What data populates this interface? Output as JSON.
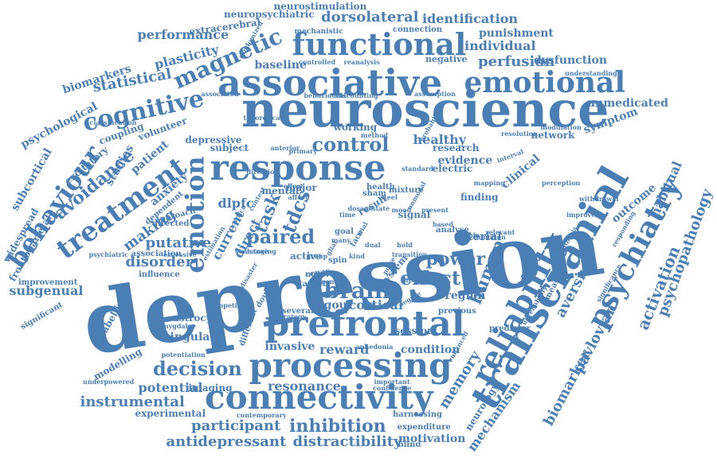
{
  "color": "#4a7fb5",
  "words": [
    {
      "text": "depression",
      "w": 100
    },
    {
      "text": "neuroscience",
      "w": 62
    },
    {
      "text": "transcranial",
      "w": 48
    },
    {
      "text": "associative",
      "w": 46
    },
    {
      "text": "prefrontal",
      "w": 44
    },
    {
      "text": "response",
      "w": 42
    },
    {
      "text": "processing",
      "w": 40
    },
    {
      "text": "connectivity",
      "w": 40
    },
    {
      "text": "functional",
      "w": 36
    },
    {
      "text": "emotional",
      "w": 36
    },
    {
      "text": "reliability",
      "w": 36
    },
    {
      "text": "psychiatry",
      "w": 34
    },
    {
      "text": "treatment",
      "w": 32
    },
    {
      "text": "behaviour",
      "w": 30
    },
    {
      "text": "emotion",
      "w": 30
    },
    {
      "text": "cognitive",
      "w": 28
    },
    {
      "text": "magnetic",
      "w": 26
    },
    {
      "text": "brain",
      "w": 26
    },
    {
      "text": "decision",
      "w": 24
    },
    {
      "text": "control",
      "w": 24
    },
    {
      "text": "paired",
      "w": 24
    },
    {
      "text": "effect",
      "w": 24
    },
    {
      "text": "human",
      "w": 22
    },
    {
      "text": "avoidance",
      "w": 22
    },
    {
      "text": "tdcs",
      "w": 22
    },
    {
      "text": "task",
      "w": 22
    },
    {
      "text": "power",
      "w": 22
    },
    {
      "text": "inhibition",
      "w": 22
    },
    {
      "text": "activation",
      "w": 20
    },
    {
      "text": "psychopathology",
      "w": 18
    },
    {
      "text": "antidepressant",
      "w": 18
    },
    {
      "text": "distractibility",
      "w": 18
    },
    {
      "text": "participant",
      "w": 18
    },
    {
      "text": "instrumental",
      "w": 18
    },
    {
      "text": "memory",
      "w": 18
    },
    {
      "text": "biomarker",
      "w": 18
    },
    {
      "text": "aversive",
      "w": 18
    },
    {
      "text": "pavlovian",
      "w": 18
    },
    {
      "text": "statistical",
      "w": 18
    },
    {
      "text": "perfusion",
      "w": 18
    },
    {
      "text": "dorsolateral",
      "w": 18
    },
    {
      "text": "making",
      "w": 18
    },
    {
      "text": "disorder",
      "w": 18
    },
    {
      "text": "putative",
      "w": 18
    },
    {
      "text": "mechanism",
      "w": 16
    },
    {
      "text": "habitual",
      "w": 16
    },
    {
      "text": "cortical",
      "w": 16
    },
    {
      "text": "reward",
      "w": 16
    },
    {
      "text": "resonance",
      "w": 16
    },
    {
      "text": "potential",
      "w": 16
    },
    {
      "text": "current",
      "w": 16
    },
    {
      "text": "direct",
      "w": 16
    },
    {
      "text": "dlpfc",
      "w": 16
    },
    {
      "text": "healthy",
      "w": 16
    },
    {
      "text": "subgenual",
      "w": 16
    },
    {
      "text": "plasticity",
      "w": 16
    },
    {
      "text": "performance",
      "w": 16
    },
    {
      "text": "identification",
      "w": 16
    },
    {
      "text": "individual",
      "w": 16
    },
    {
      "text": "anxiety",
      "w": 14
    },
    {
      "text": "patient",
      "w": 14
    },
    {
      "text": "studies",
      "w": 14
    },
    {
      "text": "psychological",
      "w": 14
    },
    {
      "text": "biomarkers",
      "w": 14
    },
    {
      "text": "subcortical",
      "w": 14
    },
    {
      "text": "region",
      "w": 14
    },
    {
      "text": "evidence",
      "w": 14
    },
    {
      "text": "clinical",
      "w": 14
    },
    {
      "text": "condition",
      "w": 14
    },
    {
      "text": "cingulate",
      "w": 14
    },
    {
      "text": "dysfunction",
      "w": 14
    },
    {
      "text": "unmedicated",
      "w": 14
    },
    {
      "text": "symptom",
      "w": 14
    },
    {
      "text": "outcome",
      "w": 14
    },
    {
      "text": "motivation",
      "w": 14
    },
    {
      "text": "punishment",
      "w": 14
    },
    {
      "text": "invasive",
      "w": 14
    },
    {
      "text": "vigour",
      "w": 14
    },
    {
      "text": "baseline",
      "w": 14
    },
    {
      "text": "arterial",
      "w": 14
    },
    {
      "text": "imaging",
      "w": 12
    },
    {
      "text": "network",
      "w": 12
    },
    {
      "text": "research",
      "w": 12
    },
    {
      "text": "electric",
      "w": 12
    },
    {
      "text": "astrocyte",
      "w": 12
    },
    {
      "text": "coupling",
      "w": 12
    },
    {
      "text": "volunteer",
      "w": 12
    },
    {
      "text": "neurostimulation",
      "w": 12
    },
    {
      "text": "neuropsychiatric",
      "w": 12
    },
    {
      "text": "extracerebral",
      "w": 12
    },
    {
      "text": "modelling",
      "w": 12
    },
    {
      "text": "experimental",
      "w": 12
    },
    {
      "text": "excitatory",
      "w": 12
    },
    {
      "text": "widespread",
      "w": 12
    },
    {
      "text": "frontoparietal",
      "w": 12
    },
    {
      "text": "working",
      "w": 12
    },
    {
      "text": "depressive",
      "w": 12
    },
    {
      "text": "subject",
      "w": 12
    },
    {
      "text": "finding",
      "w": 12
    },
    {
      "text": "labelling",
      "w": 12
    },
    {
      "text": "neurology",
      "w": 12
    },
    {
      "text": "session",
      "w": 12
    },
    {
      "text": "signal",
      "w": 12
    },
    {
      "text": "system",
      "w": 12
    },
    {
      "text": "active",
      "w": 12
    },
    {
      "text": "result",
      "w": 12
    },
    {
      "text": "major",
      "w": 12
    },
    {
      "text": "mental",
      "w": 12
    },
    {
      "text": "negative",
      "w": 11
    },
    {
      "text": "harnessing",
      "w": 10
    },
    {
      "text": "expenditure",
      "w": 10
    },
    {
      "text": "improvement",
      "w": 10
    },
    {
      "text": "significant",
      "w": 10
    },
    {
      "text": "influence",
      "w": 10
    },
    {
      "text": "association",
      "w": 10
    },
    {
      "text": "directed",
      "w": 10
    },
    {
      "text": "dependent",
      "w": 10
    },
    {
      "text": "approach",
      "w": 10
    },
    {
      "text": "measure",
      "w": 10
    },
    {
      "text": "analyse",
      "w": 10
    },
    {
      "text": "blind",
      "w": 10
    },
    {
      "text": "health",
      "w": 10
    },
    {
      "text": "mixture",
      "w": 10
    },
    {
      "text": "sham",
      "w": 10
    },
    {
      "text": "goal",
      "w": 10
    },
    {
      "text": "face",
      "w": 10
    },
    {
      "text": "ccpas",
      "w": 10
    },
    {
      "text": "spin",
      "w": 10
    },
    {
      "text": "novel",
      "w": 10
    },
    {
      "text": "target",
      "w": 10
    },
    {
      "text": "double",
      "w": 10
    },
    {
      "text": "different",
      "w": 10
    },
    {
      "text": "several",
      "w": 10
    },
    {
      "text": "previous",
      "w": 10
    },
    {
      "text": "predictor",
      "w": 10
    },
    {
      "text": "connection",
      "w": 10
    },
    {
      "text": "mechanistic",
      "w": 9
    },
    {
      "text": "randomized",
      "w": 8
    },
    {
      "text": "controlled",
      "w": 8
    },
    {
      "text": "reanalysis",
      "w": 8
    },
    {
      "text": "discounting",
      "w": 8
    },
    {
      "text": "assumption",
      "w": 8
    },
    {
      "text": "behavioural",
      "w": 8
    },
    {
      "text": "understanding",
      "w": 8
    },
    {
      "text": "associated",
      "w": 8
    },
    {
      "text": "classification",
      "w": 8
    },
    {
      "text": "theoretical",
      "w": 8
    },
    {
      "text": "method",
      "w": 8
    },
    {
      "text": "resolution",
      "w": 8
    },
    {
      "text": "modulation",
      "w": 8
    },
    {
      "text": "interval",
      "w": 8
    },
    {
      "text": "anterior",
      "w": 8
    },
    {
      "text": "primary",
      "w": 8
    },
    {
      "text": "direction",
      "w": 8
    },
    {
      "text": "effort",
      "w": 8
    },
    {
      "text": "affect",
      "w": 8
    },
    {
      "text": "cortico",
      "w": 8
    },
    {
      "text": "improved",
      "w": 8
    },
    {
      "text": "withdrawal",
      "w": 8
    },
    {
      "text": "perception",
      "w": 8
    },
    {
      "text": "mapping",
      "w": 8
    },
    {
      "text": "standard",
      "w": 8
    },
    {
      "text": "hypothesis",
      "w": 8
    },
    {
      "text": "relevant",
      "w": 8
    },
    {
      "text": "function",
      "w": 8
    },
    {
      "text": "sample",
      "w": 8
    },
    {
      "text": "based",
      "w": 8
    },
    {
      "text": "present",
      "w": 8
    },
    {
      "text": "state",
      "w": 8
    },
    {
      "text": "steel",
      "w": 8
    },
    {
      "text": "time",
      "w": 8
    },
    {
      "text": "hold",
      "w": 8
    },
    {
      "text": "pulse",
      "w": 8
    },
    {
      "text": "degree",
      "w": 8
    },
    {
      "text": "therapy",
      "w": 8
    },
    {
      "text": "enhanced",
      "w": 8
    },
    {
      "text": "important",
      "w": 8
    },
    {
      "text": "confidence",
      "w": 8
    },
    {
      "text": "underpowered",
      "w": 8
    },
    {
      "text": "potentiation",
      "w": 8
    },
    {
      "text": "contemporary",
      "w": 8
    },
    {
      "text": "amygdalae",
      "w": 8
    },
    {
      "text": "appetitive",
      "w": 8
    },
    {
      "text": "excessive",
      "w": 8
    },
    {
      "text": "psychiatric",
      "w": 8
    },
    {
      "text": "strategy",
      "w": 8
    },
    {
      "text": "disaster",
      "w": 8
    },
    {
      "text": "general",
      "w": 8
    },
    {
      "text": "anhedonia",
      "w": 8
    },
    {
      "text": "unreliability",
      "w": 8
    },
    {
      "text": "significance",
      "w": 8
    },
    {
      "text": "responding",
      "w": 8
    },
    {
      "text": "transition",
      "w": 8
    },
    {
      "text": "probability",
      "w": 8
    },
    {
      "text": "changing",
      "w": 8
    },
    {
      "text": "unmodal",
      "w": 8
    },
    {
      "text": "dosage",
      "w": 8
    },
    {
      "text": "mood",
      "w": 8
    },
    {
      "text": "trial",
      "w": 8
    },
    {
      "text": "many",
      "w": 8
    },
    {
      "text": "group",
      "w": 8
    },
    {
      "text": "dual",
      "w": 8
    },
    {
      "text": "structure",
      "w": 8
    },
    {
      "text": "context",
      "w": 8
    },
    {
      "text": "estimation",
      "w": 8
    },
    {
      "text": "glial",
      "w": 8
    },
    {
      "text": "kind",
      "w": 8
    }
  ]
}
